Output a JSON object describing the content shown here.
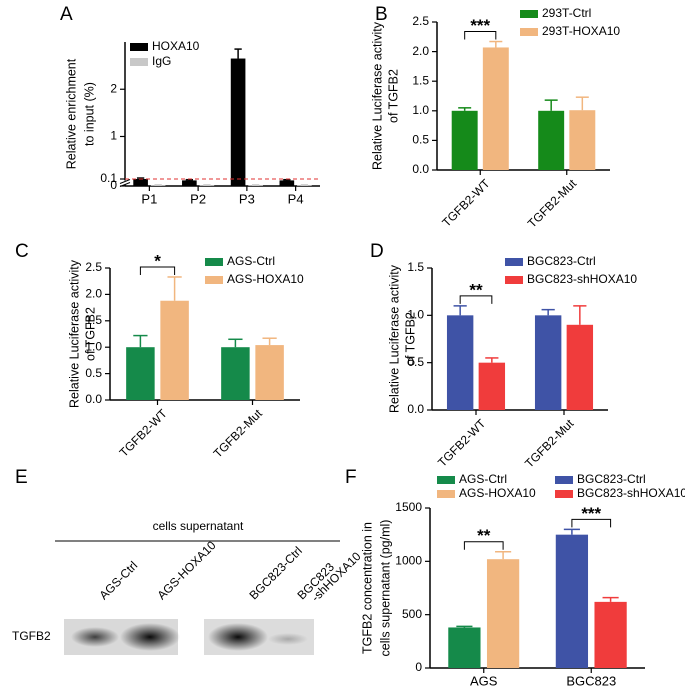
{
  "chart_data": [
    {
      "type": "bar",
      "label": "A",
      "ylabel": [
        "Relative enrichment",
        "to input (%)"
      ],
      "categories": [
        "P1",
        "P2",
        "P3",
        "P4"
      ],
      "series": [
        {
          "name": "HOXA10",
          "color": "#000000",
          "values": [
            0.1,
            0.08,
            2.65,
            0.08
          ],
          "errors": [
            0.02,
            0.01,
            0.2,
            0.01
          ]
        },
        {
          "name": "IgG",
          "color": "#c8c8c8",
          "values": [
            0.01,
            0.01,
            0.01,
            0.01
          ],
          "errors": [
            0.005,
            0.005,
            0.005,
            0.005
          ]
        }
      ],
      "ylim": [
        0,
        3
      ],
      "yticks": [
        0,
        0.1,
        1,
        2
      ],
      "ybreak": 0.1,
      "reference_line": {
        "value": 0.1,
        "color": "#e03030"
      },
      "legend": "top-left"
    },
    {
      "type": "bar",
      "label": "B",
      "ylabel": [
        "Relative Luciferase activity",
        "of TGFB2"
      ],
      "categories": [
        "TGFB2-WT",
        "TGFB2-Mut"
      ],
      "series": [
        {
          "name": "293T-Ctrl",
          "color": "#158a1a",
          "values": [
            1.0,
            1.0
          ],
          "errors": [
            0.05,
            0.18
          ]
        },
        {
          "name": "293T-HOXA10",
          "color": "#f1b67f",
          "values": [
            2.07,
            1.01
          ],
          "errors": [
            0.1,
            0.22
          ]
        }
      ],
      "ylim": [
        0,
        2.5
      ],
      "yticks": [
        {
          "value": 0,
          "label": "0.0"
        },
        0.5,
        {
          "value": 1,
          "label": "1.0"
        },
        1.5,
        {
          "value": 2,
          "label": "2.0"
        },
        2.5
      ],
      "annotations": [
        {
          "text": "***",
          "category": "TGFB2-WT"
        }
      ],
      "legend": "top-right"
    },
    {
      "type": "bar",
      "label": "C",
      "ylabel": [
        "Relative Luciferase activity",
        "of TGFB2"
      ],
      "categories": [
        "TGFB2-WT",
        "TGFB2-Mut"
      ],
      "series": [
        {
          "name": "AGS-Ctrl",
          "color": "#158a4a",
          "values": [
            1.0,
            1.0
          ],
          "errors": [
            0.22,
            0.15
          ]
        },
        {
          "name": "AGS-HOXA10",
          "color": "#f1b67f",
          "values": [
            1.88,
            1.04
          ],
          "errors": [
            0.45,
            0.13
          ]
        }
      ],
      "ylim": [
        0,
        2.5
      ],
      "yticks": [
        {
          "value": 0,
          "label": "0.0"
        },
        0.5,
        {
          "value": 1,
          "label": "1.0"
        },
        1.5,
        {
          "value": 2,
          "label": "2.0"
        },
        2.5
      ],
      "annotations": [
        {
          "text": "*",
          "category": "TGFB2-WT"
        }
      ],
      "legend": "top-right"
    },
    {
      "type": "bar",
      "label": "D",
      "ylabel": [
        "Relative Luciferase activity",
        "of TGFB2"
      ],
      "categories": [
        "TGFB2-WT",
        "TGFB2-Mut"
      ],
      "series": [
        {
          "name": "BGC823-Ctrl",
          "color": "#3f53a6",
          "values": [
            1.0,
            1.0
          ],
          "errors": [
            0.1,
            0.06
          ]
        },
        {
          "name": "BGC823-shHOXA10",
          "color": "#f03c3c",
          "values": [
            0.5,
            0.9
          ],
          "errors": [
            0.05,
            0.2
          ]
        }
      ],
      "ylim": [
        0,
        1.5
      ],
      "yticks": [
        {
          "value": 0,
          "label": "0.0"
        },
        0.5,
        {
          "value": 1,
          "label": "1.0"
        },
        1.5
      ],
      "annotations": [
        {
          "text": "**",
          "category": "TGFB2-WT"
        }
      ],
      "legend": "top-right"
    },
    {
      "type": "bar",
      "label": "F",
      "ylabel": [
        "TGFB2 concentration in",
        "cells supernatant (pg/ml)"
      ],
      "categories": [
        "AGS",
        "BGC823"
      ],
      "series": [
        {
          "name": "AGS-Ctrl",
          "color": "#158a4a",
          "values": [
            380,
            null
          ],
          "errors": [
            10,
            null
          ]
        },
        {
          "name": "AGS-HOXA10",
          "color": "#f1b67f",
          "values": [
            1020,
            null
          ],
          "errors": [
            70,
            null
          ]
        },
        {
          "name": "BGC823-Ctrl",
          "color": "#3f53a6",
          "values": [
            null,
            1250
          ],
          "errors": [
            null,
            50
          ]
        },
        {
          "name": "BGC823-shHOXA10",
          "color": "#f03c3c",
          "values": [
            null,
            620
          ],
          "errors": [
            null,
            40
          ]
        }
      ],
      "ylim": [
        0,
        1500
      ],
      "yticks": [
        0,
        500,
        1000,
        1500
      ],
      "annotations": [
        {
          "text": "**",
          "category": "AGS"
        },
        {
          "text": "***",
          "category": "BGC823"
        }
      ],
      "legend": "top"
    }
  ],
  "blot": {
    "label": "E",
    "header": "cells supernatant",
    "row": "TGFB2",
    "lanes": [
      [
        "AGS-Ctrl"
      ],
      [
        "AGS-HOXA10"
      ],
      [
        "BGC823-Ctrl"
      ],
      [
        "BGC823",
        "-shHOXA10"
      ]
    ]
  }
}
